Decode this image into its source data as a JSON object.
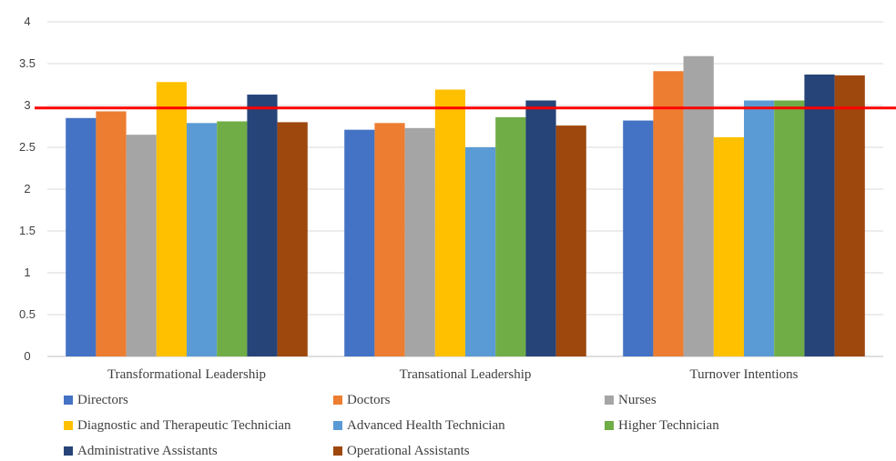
{
  "chart_data": {
    "type": "bar",
    "categories": [
      "Transformational Leadership",
      "Transational Leadership",
      "Turnover Intentions"
    ],
    "series": [
      {
        "name": "Directors",
        "color": "#4472C4",
        "values": [
          2.85,
          2.71,
          2.82
        ]
      },
      {
        "name": "Doctors",
        "color": "#ED7D31",
        "values": [
          2.93,
          2.79,
          3.41
        ]
      },
      {
        "name": "Nurses",
        "color": "#A5A5A5",
        "values": [
          2.65,
          2.73,
          3.59
        ]
      },
      {
        "name": "Diagnostic and Therapeutic Technician",
        "color": "#FFC000",
        "values": [
          3.28,
          3.19,
          2.62
        ]
      },
      {
        "name": "Advanced Health Technician",
        "color": "#5B9BD5",
        "values": [
          2.79,
          2.5,
          3.06
        ]
      },
      {
        "name": "Higher Technician",
        "color": "#70AD47",
        "values": [
          2.81,
          2.86,
          3.06
        ]
      },
      {
        "name": "Administrative Assistants",
        "color": "#264478",
        "values": [
          3.13,
          3.06,
          3.37
        ]
      },
      {
        "name": "Operational Assistants",
        "color": "#9E480E",
        "values": [
          2.8,
          2.76,
          3.36
        ]
      }
    ],
    "ylim": [
      0,
      4
    ],
    "yticks": [
      "0",
      "0.5",
      "1",
      "1.5",
      "2",
      "2.5",
      "3",
      "3.5",
      "4"
    ],
    "reference_line": {
      "value": 2.97,
      "color": "#FF0000"
    },
    "grid": true,
    "legend_position": "bottom",
    "gridline_color": "#D9D9D9"
  }
}
